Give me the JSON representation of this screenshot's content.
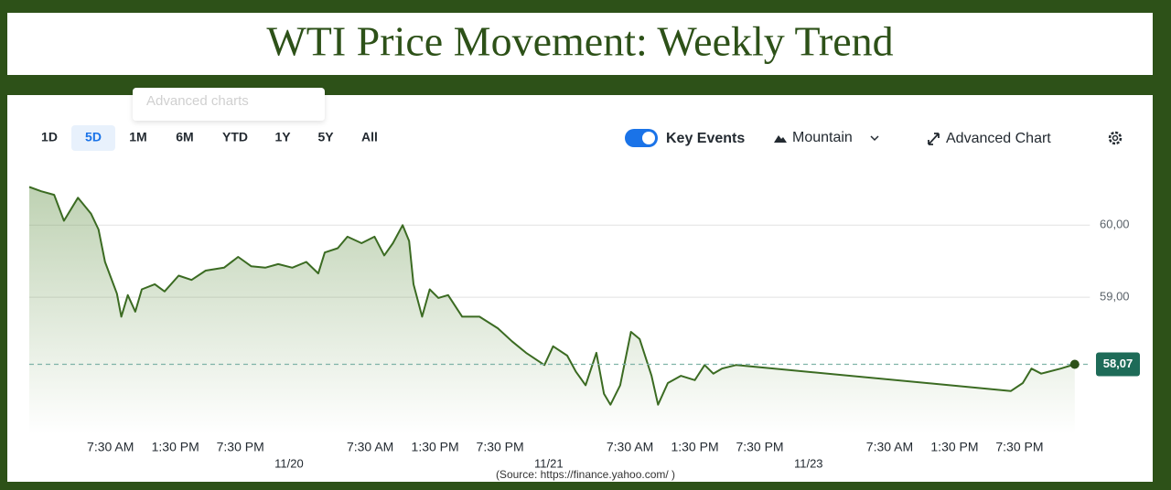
{
  "chart_data": {
    "type": "area",
    "title": "WTI Price Movement: Weekly Trend",
    "ui": {
      "ghost_menu_item": "Advanced charts",
      "range_buttons": [
        "1D",
        "5D",
        "1M",
        "6M",
        "YTD",
        "1Y",
        "5Y",
        "All"
      ],
      "selected_range": "5D",
      "key_events": "Key Events",
      "key_events_on": true,
      "chart_style": "Mountain",
      "advanced_chart": "Advanced Chart"
    },
    "source": "(Source: https://finance.yahoo.com/ )",
    "color": "#3b6b22",
    "x": [
      0,
      1.1,
      2.3,
      3.2,
      4.5,
      5.7,
      6.4,
      7.0,
      8.1,
      8.5,
      9.1,
      9.8,
      10.4,
      11.6,
      12.5,
      13.8,
      15.0,
      16.3,
      18.0,
      19.3,
      20.5,
      21.8,
      23.0,
      24.3,
      25.6,
      26.7,
      27.3,
      28.5,
      29.4,
      30.7,
      31.9,
      32.8,
      33.6,
      34.5,
      35.1,
      35.5,
      36.3,
      37.0,
      37.8,
      38.7,
      40.0,
      41.6,
      43.3,
      44.6,
      45.9,
      47.6,
      48.4,
      49.7,
      50.5,
      51.4,
      52.4,
      53.1,
      53.7,
      54.6,
      55.6,
      56.4,
      57.5,
      58.1,
      59.0,
      60.2,
      61.5,
      62.4,
      63.2,
      64.0,
      65.3,
      90.7,
      91.8,
      92.6,
      93.5,
      95.3,
      96.6
    ],
    "values": [
      60.53,
      60.47,
      60.42,
      60.06,
      60.38,
      60.16,
      59.94,
      59.49,
      59.05,
      58.73,
      59.03,
      58.8,
      59.11,
      59.18,
      59.08,
      59.3,
      59.24,
      59.37,
      59.41,
      59.56,
      59.43,
      59.41,
      59.46,
      59.41,
      59.49,
      59.33,
      59.62,
      59.68,
      59.84,
      59.75,
      59.84,
      59.58,
      59.75,
      60.0,
      59.78,
      59.18,
      58.73,
      59.11,
      58.99,
      59.03,
      58.73,
      58.73,
      58.57,
      58.39,
      58.23,
      58.06,
      58.32,
      58.19,
      57.97,
      57.78,
      58.23,
      57.66,
      57.51,
      57.78,
      58.52,
      58.42,
      57.91,
      57.51,
      57.81,
      57.91,
      57.85,
      58.06,
      57.94,
      58.01,
      58.06,
      57.7,
      57.81,
      58.01,
      57.94,
      58.01,
      58.07
    ],
    "xlim": [
      0,
      98
    ],
    "ylim": [
      57.1,
      60.65
    ],
    "yticks": [
      {
        "value": 60,
        "label": "60,00"
      },
      {
        "value": 59,
        "label": "59,00"
      }
    ],
    "xticks": [
      {
        "value": 7.5,
        "label": "7:30 AM"
      },
      {
        "value": 13.5,
        "label": "1:30 PM"
      },
      {
        "value": 19.5,
        "label": "7:30 PM"
      },
      {
        "value": 31.5,
        "label": "7:30 AM"
      },
      {
        "value": 37.5,
        "label": "1:30 PM"
      },
      {
        "value": 43.5,
        "label": "7:30 PM"
      },
      {
        "value": 55.5,
        "label": "7:30 AM"
      },
      {
        "value": 61.5,
        "label": "1:30 PM"
      },
      {
        "value": 67.5,
        "label": "7:30 PM"
      },
      {
        "value": 79.5,
        "label": "7:30 AM"
      },
      {
        "value": 85.5,
        "label": "1:30 PM"
      },
      {
        "value": 91.5,
        "label": "7:30 PM"
      }
    ],
    "date_ticks": [
      {
        "value": 24,
        "label": "11/20"
      },
      {
        "value": 48,
        "label": "11/21"
      },
      {
        "value": 72,
        "label": "11/23"
      }
    ],
    "reference_line": {
      "value": 58.07,
      "label": "58,07"
    },
    "grid": true
  }
}
